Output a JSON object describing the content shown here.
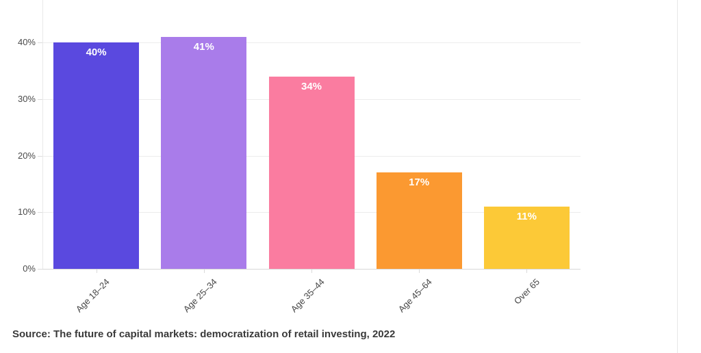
{
  "chart_data": {
    "type": "bar",
    "title": "",
    "xlabel": "",
    "ylabel": "",
    "categories": [
      "Age 18–24",
      "Age 25–34",
      "Age 35–44",
      "Age 45–64",
      "Over 65"
    ],
    "values": [
      40,
      41,
      34,
      17,
      11
    ],
    "value_labels": [
      "40%",
      "41%",
      "34%",
      "17%",
      "11%"
    ],
    "bar_colors": [
      "#5A49DF",
      "#A97CEA",
      "#FA7CA0",
      "#FB9931",
      "#FCC937"
    ],
    "yticks": [
      0,
      10,
      20,
      30,
      40
    ],
    "ytick_labels": [
      "0%",
      "10%",
      "20%",
      "30%",
      "40%"
    ],
    "ylim": [
      0,
      47.5
    ],
    "grid": true,
    "legend": false,
    "source": "Source: The future of capital markets: democratization of retail investing, 2022"
  }
}
